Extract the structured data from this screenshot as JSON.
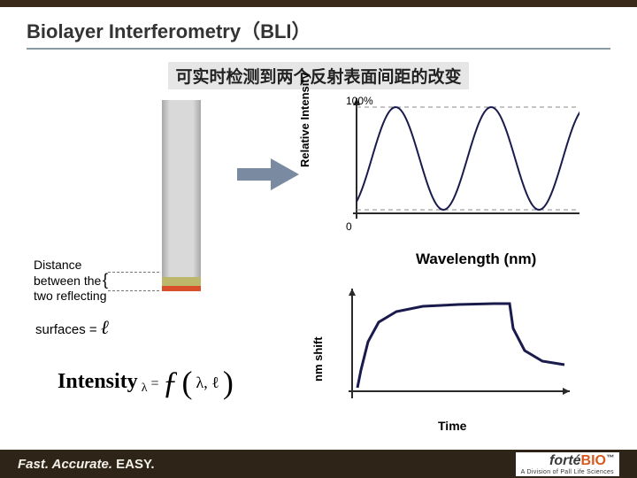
{
  "colors": {
    "top_bar": "#3a2a1a",
    "title_text": "#333333",
    "title_rule": "#8a9aa3",
    "subtitle_bg": "#e6e6e6",
    "subtitle_text": "#222222",
    "probe_tip1": "#bdb76b",
    "probe_tip2": "#d94f2a",
    "arrow": "#7a8aa0",
    "axis": "#2a2a2a",
    "curve": "#1a1a4d",
    "dash": "#888888",
    "footer_bg": "#2e2418",
    "footer_text": "#f2f2ea",
    "brand_main": "#3a3a3a",
    "brand_accent": "#d65a1f"
  },
  "title": "Biolayer Interferometry（BLI）",
  "subtitle": "可实时检测到两个反射表面间距的改变",
  "chart1": {
    "type": "line",
    "ylabel": "Relative Intensity",
    "top_label": "100%",
    "zero_label": "0",
    "xlim": [
      0,
      260
    ],
    "ylim": [
      0,
      130
    ],
    "dash_top_y": 10,
    "dash_bot_y": 126,
    "wave": {
      "amplitude": 58,
      "mid": 68,
      "period": 108,
      "phase": -1.0
    },
    "line_width": 2,
    "wavelength_label": "Wavelength (nm)",
    "wavelength_fontsize": 17
  },
  "distance_label": {
    "l1": "Distance",
    "l2": "between the",
    "l3": "two reflecting"
  },
  "surfaces_label": {
    "prefix": "surfaces = ",
    "ell": "ℓ"
  },
  "formula": {
    "word": "Intensity",
    "sub": "λ",
    "eq": " = ",
    "f": "ƒ",
    "args": "λ,  ℓ"
  },
  "chart2": {
    "type": "line",
    "ylabel": "nm shift",
    "time_label": "Time",
    "xlim": [
      0,
      246
    ],
    "ylim": [
      0,
      116
    ],
    "points": [
      [
        6,
        112
      ],
      [
        10,
        92
      ],
      [
        18,
        60
      ],
      [
        30,
        38
      ],
      [
        50,
        26
      ],
      [
        80,
        20
      ],
      [
        120,
        18
      ],
      [
        160,
        17
      ],
      [
        178,
        17
      ],
      [
        182,
        45
      ],
      [
        195,
        70
      ],
      [
        215,
        82
      ],
      [
        240,
        86
      ]
    ],
    "line_width": 3
  },
  "footer": {
    "fast": "Fast. ",
    "accurate": "Accurate. ",
    "easy": "EASY.",
    "brand_pre": "forté",
    "brand_accent": "BIO",
    "tm": "™",
    "sub": "A Division of Pall Life Sciences"
  }
}
